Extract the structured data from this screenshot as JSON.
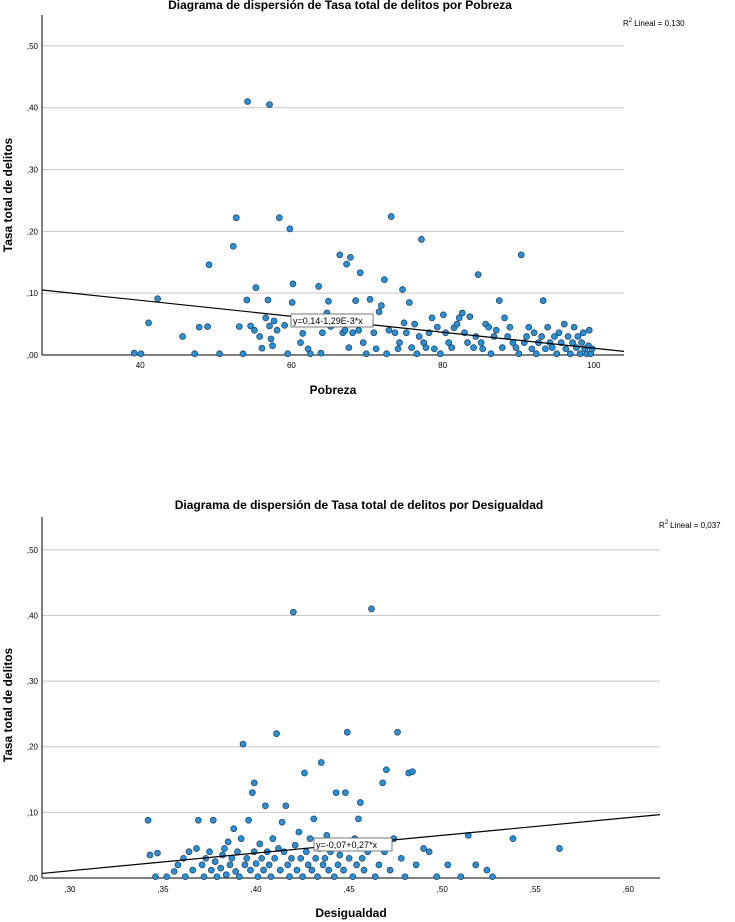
{
  "chart_data": [
    {
      "type": "scatter",
      "title": "Diagrama de dispersión de Tasa total de delitos por Pobreza",
      "xlabel": "Pobreza",
      "ylabel": "Tasa total de delitos",
      "xticks": [
        "40",
        "60",
        "80",
        "100"
      ],
      "yticks": [
        ",00",
        ",10",
        ",20",
        ",30",
        ",40",
        ",50"
      ],
      "xlim": [
        27,
        104
      ],
      "ylim": [
        0,
        0.55
      ],
      "grid": true,
      "r2_prefix": "R",
      "r2_sup": "2",
      "r2_text": "Lineal = 0,130",
      "fit_label": "y=0,14-1,29E-3*x",
      "fit": {
        "intercept": 0.14,
        "slope": -0.00129,
        "label_x": 60
      },
      "point_color": "#2a8fd4",
      "points": [
        [
          39.2,
          0.003
        ],
        [
          40.1,
          0.002
        ],
        [
          41.1,
          0.052
        ],
        [
          42.3,
          0.091
        ],
        [
          45.6,
          0.03
        ],
        [
          47.2,
          0.002
        ],
        [
          47.8,
          0.045
        ],
        [
          48.9,
          0.046
        ],
        [
          49.1,
          0.146
        ],
        [
          50.5,
          0.002
        ],
        [
          52.3,
          0.176
        ],
        [
          52.7,
          0.222
        ],
        [
          53.1,
          0.046
        ],
        [
          53.6,
          0.002
        ],
        [
          54.1,
          0.089
        ],
        [
          54.2,
          0.41
        ],
        [
          54.6,
          0.047
        ],
        [
          55.3,
          0.109
        ],
        [
          55.1,
          0.04
        ],
        [
          55.8,
          0.03
        ],
        [
          56.1,
          0.011
        ],
        [
          56.6,
          0.06
        ],
        [
          56.9,
          0.089
        ],
        [
          57.1,
          0.405
        ],
        [
          57.1,
          0.047
        ],
        [
          57.3,
          0.026
        ],
        [
          57.5,
          0.015
        ],
        [
          57.7,
          0.055
        ],
        [
          58.1,
          0.04
        ],
        [
          58.4,
          0.222
        ],
        [
          59.1,
          0.048
        ],
        [
          59.5,
          0.002
        ],
        [
          59.8,
          0.204
        ],
        [
          60.2,
          0.115
        ],
        [
          60.1,
          0.085
        ],
        [
          61.2,
          0.02
        ],
        [
          61.5,
          0.035
        ],
        [
          62.2,
          0.01
        ],
        [
          62.5,
          0.002
        ],
        [
          63.2,
          0.052
        ],
        [
          63.6,
          0.111
        ],
        [
          63.9,
          0.003
        ],
        [
          64.1,
          0.036
        ],
        [
          64.7,
          0.068
        ],
        [
          64.9,
          0.087
        ],
        [
          65.2,
          0.046
        ],
        [
          66.4,
          0.162
        ],
        [
          66.8,
          0.036
        ],
        [
          67.3,
          0.147
        ],
        [
          67.8,
          0.158
        ],
        [
          67.1,
          0.04
        ],
        [
          67.6,
          0.012
        ],
        [
          68.1,
          0.036
        ],
        [
          68.5,
          0.088
        ],
        [
          68.9,
          0.04
        ],
        [
          69.1,
          0.133
        ],
        [
          69.5,
          0.02
        ],
        [
          69.9,
          0.002
        ],
        [
          70.4,
          0.09
        ],
        [
          70.9,
          0.036
        ],
        [
          71.2,
          0.01
        ],
        [
          71.6,
          0.07
        ],
        [
          71.9,
          0.08
        ],
        [
          72.3,
          0.122
        ],
        [
          72.6,
          0.002
        ],
        [
          72.9,
          0.04
        ],
        [
          73.2,
          0.224
        ],
        [
          73.7,
          0.036
        ],
        [
          74.1,
          0.01
        ],
        [
          74.3,
          0.02
        ],
        [
          74.7,
          0.106
        ],
        [
          74.9,
          0.052
        ],
        [
          75.2,
          0.036
        ],
        [
          75.6,
          0.085
        ],
        [
          75.9,
          0.012
        ],
        [
          76.3,
          0.05
        ],
        [
          76.6,
          0.002
        ],
        [
          76.9,
          0.03
        ],
        [
          77.2,
          0.187
        ],
        [
          77.5,
          0.02
        ],
        [
          77.8,
          0.012
        ],
        [
          78.2,
          0.036
        ],
        [
          78.6,
          0.06
        ],
        [
          78.9,
          0.01
        ],
        [
          79.3,
          0.045
        ],
        [
          79.7,
          0.002
        ],
        [
          80.1,
          0.065
        ],
        [
          80.4,
          0.036
        ],
        [
          80.8,
          0.02
        ],
        [
          81.2,
          0.012
        ],
        [
          81.5,
          0.044
        ],
        [
          81.9,
          0.05
        ],
        [
          82.2,
          0.06
        ],
        [
          82.6,
          0.068
        ],
        [
          82.9,
          0.036
        ],
        [
          83.3,
          0.02
        ],
        [
          83.6,
          0.062
        ],
        [
          84.1,
          0.012
        ],
        [
          84.4,
          0.03
        ],
        [
          84.7,
          0.13
        ],
        [
          85.1,
          0.02
        ],
        [
          85.3,
          0.01
        ],
        [
          85.7,
          0.05
        ],
        [
          86.1,
          0.045
        ],
        [
          86.4,
          0.002
        ],
        [
          86.8,
          0.03
        ],
        [
          87.1,
          0.04
        ],
        [
          87.5,
          0.088
        ],
        [
          87.9,
          0.012
        ],
        [
          88.2,
          0.06
        ],
        [
          88.6,
          0.03
        ],
        [
          88.9,
          0.045
        ],
        [
          89.3,
          0.02
        ],
        [
          89.7,
          0.012
        ],
        [
          90.1,
          0.002
        ],
        [
          90.4,
          0.162
        ],
        [
          90.8,
          0.02
        ],
        [
          91.1,
          0.03
        ],
        [
          91.4,
          0.045
        ],
        [
          91.8,
          0.01
        ],
        [
          92.1,
          0.036
        ],
        [
          92.4,
          0.002
        ],
        [
          92.7,
          0.02
        ],
        [
          93.1,
          0.03
        ],
        [
          93.3,
          0.088
        ],
        [
          93.6,
          0.01
        ],
        [
          93.9,
          0.045
        ],
        [
          94.2,
          0.02
        ],
        [
          94.5,
          0.012
        ],
        [
          94.8,
          0.03
        ],
        [
          95.1,
          0.002
        ],
        [
          95.4,
          0.036
        ],
        [
          95.7,
          0.02
        ],
        [
          96.1,
          0.05
        ],
        [
          96.3,
          0.01
        ],
        [
          96.6,
          0.03
        ],
        [
          96.9,
          0.002
        ],
        [
          97.2,
          0.02
        ],
        [
          97.4,
          0.045
        ],
        [
          97.7,
          0.012
        ],
        [
          97.9,
          0.03
        ],
        [
          98.2,
          0.002
        ],
        [
          98.4,
          0.02
        ],
        [
          98.6,
          0.036
        ],
        [
          98.8,
          0.01
        ],
        [
          99.1,
          0.002
        ],
        [
          99.3,
          0.015
        ],
        [
          99.4,
          0.04
        ],
        [
          99.6,
          0.002
        ],
        [
          99.8,
          0.01
        ]
      ]
    },
    {
      "type": "scatter",
      "title": "Diagrama de dispersión de Tasa total de delitos por Desigualdad",
      "xlabel": "Desigualdad",
      "ylabel": "Tasa total de delitos",
      "xticks": [
        ",30",
        ",35",
        ",40",
        ",45",
        ",50",
        ",55",
        ",60"
      ],
      "yticks": [
        ",00",
        ",10",
        ",20",
        ",30",
        ",40",
        ",50"
      ],
      "xlim": [
        0.285,
        0.617
      ],
      "ylim": [
        0,
        0.55
      ],
      "grid": true,
      "r2_prefix": "R",
      "r2_sup": "2",
      "r2_text": "Lineal = 0,037",
      "fit_label": "y=-0,07+0,27*x",
      "fit": {
        "intercept": -0.07,
        "slope": 0.27,
        "label_x": 0.415
      },
      "point_color": "#2a8fd4",
      "points": [
        [
          0.342,
          0.088
        ],
        [
          0.343,
          0.035
        ],
        [
          0.346,
          0.002
        ],
        [
          0.347,
          0.038
        ],
        [
          0.352,
          0.002
        ],
        [
          0.356,
          0.01
        ],
        [
          0.358,
          0.02
        ],
        [
          0.361,
          0.03
        ],
        [
          0.362,
          0.002
        ],
        [
          0.364,
          0.04
        ],
        [
          0.366,
          0.012
        ],
        [
          0.368,
          0.045
        ],
        [
          0.369,
          0.088
        ],
        [
          0.371,
          0.02
        ],
        [
          0.372,
          0.002
        ],
        [
          0.373,
          0.03
        ],
        [
          0.375,
          0.04
        ],
        [
          0.376,
          0.012
        ],
        [
          0.377,
          0.088
        ],
        [
          0.378,
          0.025
        ],
        [
          0.379,
          0.002
        ],
        [
          0.381,
          0.015
        ],
        [
          0.382,
          0.035
        ],
        [
          0.383,
          0.045
        ],
        [
          0.384,
          0.005
        ],
        [
          0.385,
          0.055
        ],
        [
          0.386,
          0.02
        ],
        [
          0.387,
          0.03
        ],
        [
          0.388,
          0.075
        ],
        [
          0.389,
          0.01
        ],
        [
          0.39,
          0.04
        ],
        [
          0.391,
          0.002
        ],
        [
          0.392,
          0.06
        ],
        [
          0.393,
          0.204
        ],
        [
          0.394,
          0.02
        ],
        [
          0.395,
          0.03
        ],
        [
          0.396,
          0.088
        ],
        [
          0.397,
          0.012
        ],
        [
          0.398,
          0.13
        ],
        [
          0.399,
          0.145
        ],
        [
          0.399,
          0.04
        ],
        [
          0.4,
          0.022
        ],
        [
          0.401,
          0.002
        ],
        [
          0.402,
          0.052
        ],
        [
          0.403,
          0.03
        ],
        [
          0.404,
          0.012
        ],
        [
          0.405,
          0.11
        ],
        [
          0.406,
          0.04
        ],
        [
          0.407,
          0.02
        ],
        [
          0.408,
          0.002
        ],
        [
          0.409,
          0.06
        ],
        [
          0.41,
          0.03
        ],
        [
          0.411,
          0.22
        ],
        [
          0.412,
          0.045
        ],
        [
          0.413,
          0.012
        ],
        [
          0.414,
          0.085
        ],
        [
          0.415,
          0.04
        ],
        [
          0.416,
          0.11
        ],
        [
          0.417,
          0.02
        ],
        [
          0.418,
          0.002
        ],
        [
          0.419,
          0.03
        ],
        [
          0.42,
          0.405
        ],
        [
          0.421,
          0.05
        ],
        [
          0.422,
          0.012
        ],
        [
          0.423,
          0.07
        ],
        [
          0.424,
          0.03
        ],
        [
          0.425,
          0.002
        ],
        [
          0.426,
          0.16
        ],
        [
          0.427,
          0.04
        ],
        [
          0.428,
          0.02
        ],
        [
          0.429,
          0.06
        ],
        [
          0.43,
          0.012
        ],
        [
          0.431,
          0.09
        ],
        [
          0.432,
          0.03
        ],
        [
          0.433,
          0.002
        ],
        [
          0.434,
          0.045
        ],
        [
          0.435,
          0.176
        ],
        [
          0.436,
          0.02
        ],
        [
          0.437,
          0.03
        ],
        [
          0.438,
          0.065
        ],
        [
          0.439,
          0.012
        ],
        [
          0.44,
          0.04
        ],
        [
          0.442,
          0.002
        ],
        [
          0.443,
          0.13
        ],
        [
          0.444,
          0.02
        ],
        [
          0.445,
          0.035
        ],
        [
          0.446,
          0.05
        ],
        [
          0.447,
          0.012
        ],
        [
          0.448,
          0.13
        ],
        [
          0.449,
          0.222
        ],
        [
          0.45,
          0.03
        ],
        [
          0.452,
          0.002
        ],
        [
          0.453,
          0.06
        ],
        [
          0.454,
          0.02
        ],
        [
          0.455,
          0.09
        ],
        [
          0.456,
          0.115
        ],
        [
          0.457,
          0.03
        ],
        [
          0.458,
          0.012
        ],
        [
          0.46,
          0.04
        ],
        [
          0.462,
          0.41
        ],
        [
          0.464,
          0.002
        ],
        [
          0.466,
          0.02
        ],
        [
          0.468,
          0.145
        ],
        [
          0.469,
          0.04
        ],
        [
          0.47,
          0.165
        ],
        [
          0.472,
          0.012
        ],
        [
          0.474,
          0.06
        ],
        [
          0.476,
          0.222
        ],
        [
          0.478,
          0.03
        ],
        [
          0.48,
          0.002
        ],
        [
          0.482,
          0.16
        ],
        [
          0.484,
          0.162
        ],
        [
          0.486,
          0.02
        ],
        [
          0.49,
          0.045
        ],
        [
          0.493,
          0.04
        ],
        [
          0.497,
          0.002
        ],
        [
          0.503,
          0.02
        ],
        [
          0.51,
          0.002
        ],
        [
          0.514,
          0.065
        ],
        [
          0.518,
          0.02
        ],
        [
          0.524,
          0.012
        ],
        [
          0.527,
          0.002
        ],
        [
          0.538,
          0.06
        ],
        [
          0.563,
          0.045
        ]
      ]
    }
  ]
}
